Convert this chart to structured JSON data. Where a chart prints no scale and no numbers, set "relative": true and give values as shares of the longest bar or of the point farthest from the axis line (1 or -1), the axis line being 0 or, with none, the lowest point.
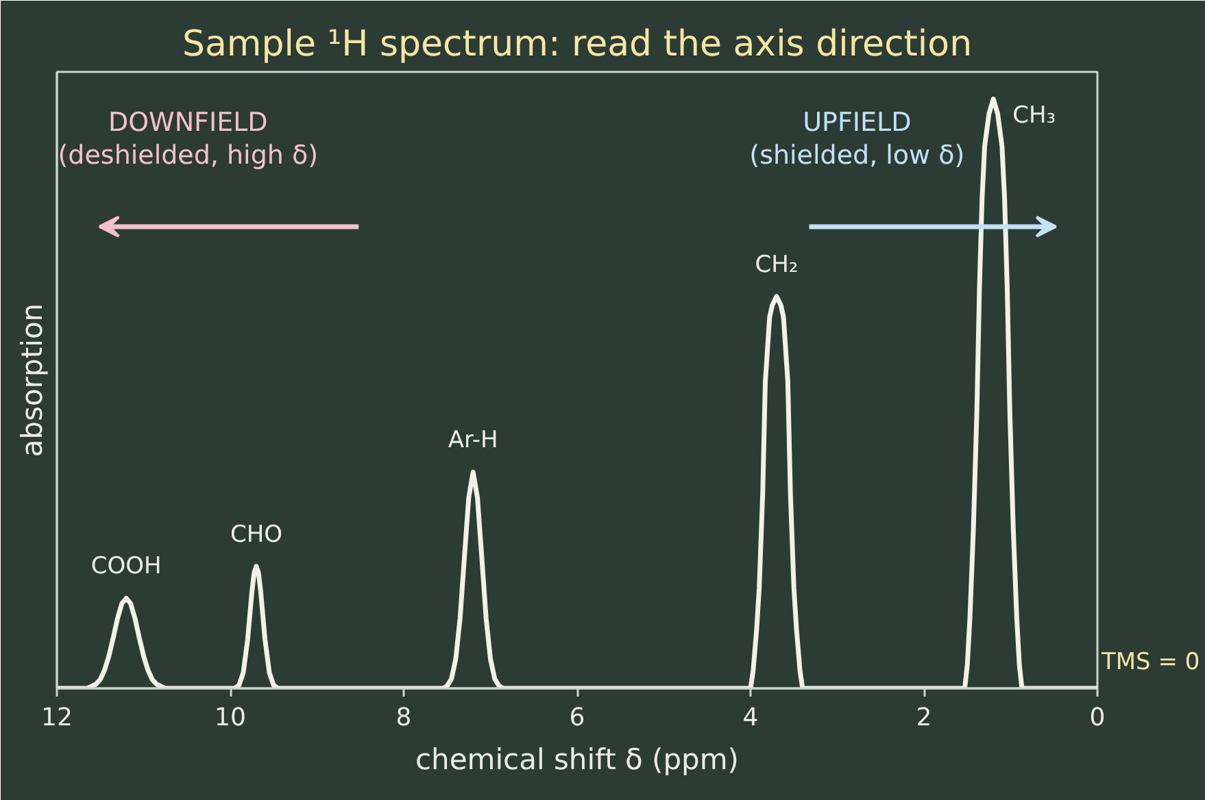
{
  "chart_data": {
    "type": "line",
    "title": "Sample ¹H spectrum: read the axis direction",
    "xlabel": "chemical shift δ (ppm)",
    "ylabel": "absorption",
    "relative": true,
    "xlim": [
      12,
      0
    ],
    "xticks": [
      12,
      10,
      8,
      6,
      4,
      2,
      0
    ],
    "series": [
      {
        "color": "#f0f2ea",
        "x": [
          12.0,
          11.65,
          11.55,
          11.5,
          11.45,
          11.4,
          11.35,
          11.3,
          11.25,
          11.2,
          11.15,
          11.1,
          11.05,
          11.0,
          10.95,
          10.9,
          10.85,
          10.75,
          9.95,
          9.9,
          9.85,
          9.8,
          9.75,
          9.725,
          9.7,
          9.675,
          9.65,
          9.6,
          9.55,
          9.5,
          9.45,
          7.55,
          7.5,
          7.45,
          7.4,
          7.35,
          7.3,
          7.25,
          7.2,
          7.15,
          7.1,
          7.05,
          7.0,
          6.95,
          6.9,
          6.85,
          4.0,
          3.97,
          3.93,
          3.9,
          3.86,
          3.83,
          3.78,
          3.75,
          3.7,
          3.65,
          3.62,
          3.57,
          3.54,
          3.5,
          3.47,
          3.43,
          3.4,
          1.53,
          1.5,
          1.47,
          1.43,
          1.39,
          1.36,
          1.33,
          1.3,
          1.25,
          1.2,
          1.15,
          1.1,
          1.07,
          1.04,
          1.01,
          0.97,
          0.93,
          0.9,
          0.87,
          0.0
        ],
        "values": [
          0,
          0,
          0.007,
          0.015,
          0.031,
          0.055,
          0.086,
          0.119,
          0.144,
          0.153,
          0.144,
          0.119,
          0.086,
          0.055,
          0.031,
          0.015,
          0.007,
          0,
          0,
          0.005,
          0.027,
          0.083,
          0.165,
          0.196,
          0.207,
          0.196,
          0.165,
          0.083,
          0.027,
          0.005,
          0,
          0,
          0.004,
          0.016,
          0.05,
          0.119,
          0.223,
          0.324,
          0.367,
          0.324,
          0.223,
          0.119,
          0.05,
          0.016,
          0.004,
          0,
          0,
          0.03,
          0.1,
          0.17,
          0.33,
          0.52,
          0.63,
          0.65,
          0.665,
          0.65,
          0.63,
          0.52,
          0.33,
          0.17,
          0.1,
          0.03,
          0,
          0,
          0.04,
          0.12,
          0.27,
          0.47,
          0.68,
          0.83,
          0.92,
          0.975,
          1.0,
          0.975,
          0.92,
          0.83,
          0.68,
          0.47,
          0.27,
          0.12,
          0.04,
          0,
          0
        ]
      }
    ],
    "annotations": [
      {
        "text": "COOH",
        "x": 11.2,
        "y": 0.153
      },
      {
        "text": "CHO",
        "x": 9.7,
        "y": 0.207
      },
      {
        "text": "Ar-H",
        "x": 7.2,
        "y": 0.367
      },
      {
        "text": "CH₂",
        "x": 3.7,
        "y": 0.665
      },
      {
        "text": "CH₃",
        "x": 1.2,
        "y": 1.0
      },
      "DOWNFIELD\n(deshielded, high δ)",
      "UPFIELD\n(shielded, low δ)",
      {
        "text": "TMS = 0",
        "x": 0,
        "y": 0
      }
    ]
  }
}
